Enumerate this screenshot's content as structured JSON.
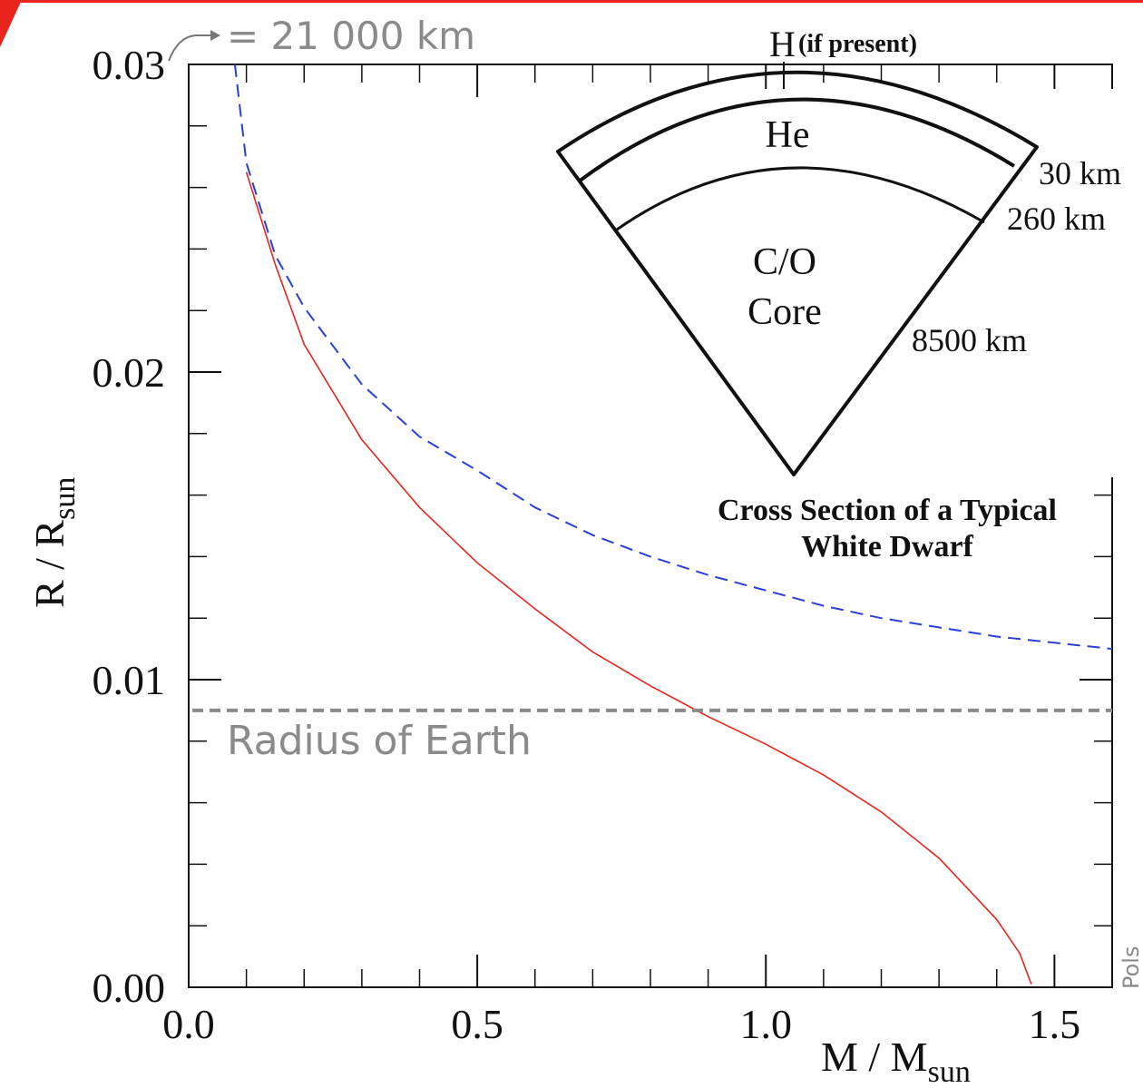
{
  "chart_data": {
    "type": "line",
    "x_label": {
      "text": "M / M",
      "sub": "sun"
    },
    "y_label": {
      "text": "R / R",
      "sub": "sun"
    },
    "xlim": [
      0,
      1.6
    ],
    "ylim": [
      0,
      0.03
    ],
    "xticks": [
      {
        "value": 0,
        "label": "0.0"
      },
      {
        "value": 0.5,
        "label": "0.5"
      },
      {
        "value": 1,
        "label": "1.0"
      },
      {
        "value": 1.5,
        "label": "1.5"
      }
    ],
    "yticks": [
      {
        "value": 0,
        "label": "0.00"
      },
      {
        "value": 0.01,
        "label": "0.01"
      },
      {
        "value": 0.02,
        "label": "0.02"
      },
      {
        "value": 0.03,
        "label": "0.03"
      }
    ],
    "minor_ticks": 5,
    "series": [
      {
        "color": "#e8241c",
        "line_style": "solid",
        "x": [
          0.1,
          0.15,
          0.2,
          0.3,
          0.4,
          0.5,
          0.6,
          0.7,
          0.8,
          0.9,
          1.0,
          1.1,
          1.2,
          1.3,
          1.4,
          1.44,
          1.46
        ],
        "values": [
          0.0265,
          0.0235,
          0.0209,
          0.0178,
          0.0156,
          0.0138,
          0.0123,
          0.0109,
          0.0098,
          0.0088,
          0.0079,
          0.0069,
          0.0057,
          0.0042,
          0.0022,
          0.0011,
          0.0001
        ]
      },
      {
        "color": "#2a3fd8",
        "line_style": "dashed",
        "x": [
          0.08,
          0.1,
          0.15,
          0.2,
          0.3,
          0.4,
          0.5,
          0.6,
          0.7,
          0.8,
          0.9,
          1.0,
          1.1,
          1.2,
          1.3,
          1.4,
          1.5,
          1.6
        ],
        "values": [
          0.03,
          0.0268,
          0.0238,
          0.0221,
          0.0196,
          0.0179,
          0.0168,
          0.0156,
          0.0147,
          0.014,
          0.0134,
          0.0129,
          0.0124,
          0.012,
          0.0117,
          0.0114,
          0.0112,
          0.011
        ]
      }
    ],
    "reference_line": {
      "y": 0.009,
      "label": "Radius of Earth",
      "color": "#8a8a8a"
    },
    "annotation": {
      "text": "= 21 000 km",
      "y": 0.03
    },
    "inset": {
      "outer": "H",
      "outer_note": "(if present)",
      "layer": "He",
      "core": [
        "C/O",
        "Core"
      ],
      "depths": [
        "30 km",
        "260 km",
        "8500 km"
      ],
      "caption": [
        "Cross Section of a Typical",
        "White Dwarf"
      ]
    },
    "credit": "Pols"
  }
}
